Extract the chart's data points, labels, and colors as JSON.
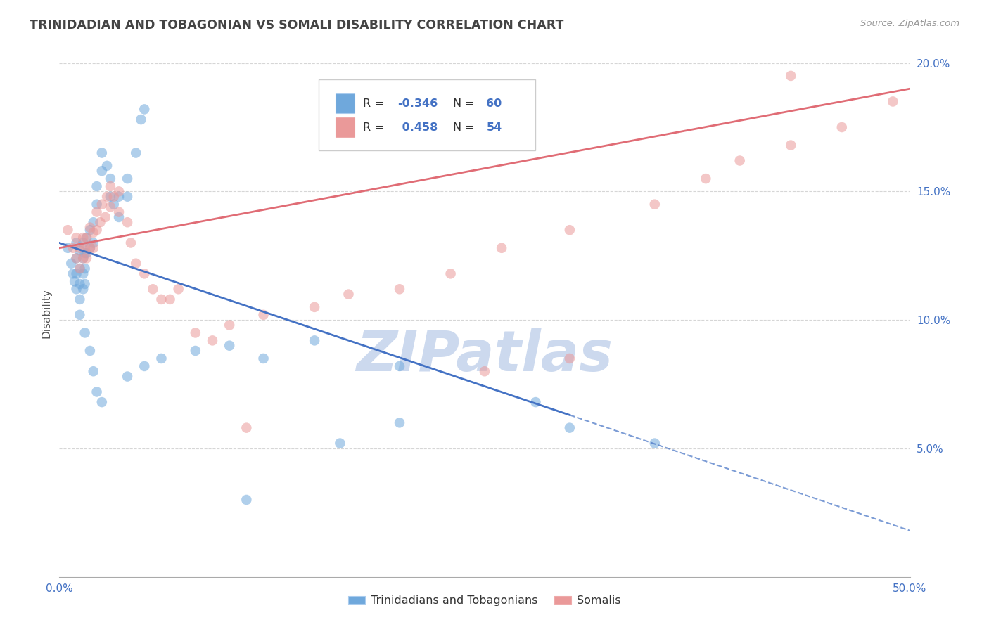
{
  "title": "TRINIDADIAN AND TOBAGONIAN VS SOMALI DISABILITY CORRELATION CHART",
  "source_text": "Source: ZipAtlas.com",
  "ylabel": "Disability",
  "watermark": "ZIPatlas",
  "xmin": 0.0,
  "xmax": 0.5,
  "ymin": 0.0,
  "ymax": 0.205,
  "yticks": [
    0.05,
    0.1,
    0.15,
    0.2
  ],
  "ytick_labels": [
    "5.0%",
    "10.0%",
    "15.0%",
    "20.0%"
  ],
  "color_blue": "#6fa8dc",
  "color_pink": "#ea9999",
  "color_blue_line": "#4472c4",
  "color_pink_line": "#e06c75",
  "blue_scatter": [
    [
      0.005,
      0.128
    ],
    [
      0.007,
      0.122
    ],
    [
      0.008,
      0.118
    ],
    [
      0.009,
      0.115
    ],
    [
      0.01,
      0.13
    ],
    [
      0.01,
      0.124
    ],
    [
      0.01,
      0.118
    ],
    [
      0.01,
      0.112
    ],
    [
      0.012,
      0.127
    ],
    [
      0.012,
      0.12
    ],
    [
      0.012,
      0.114
    ],
    [
      0.012,
      0.108
    ],
    [
      0.012,
      0.102
    ],
    [
      0.014,
      0.13
    ],
    [
      0.014,
      0.124
    ],
    [
      0.014,
      0.118
    ],
    [
      0.014,
      0.112
    ],
    [
      0.015,
      0.126
    ],
    [
      0.015,
      0.12
    ],
    [
      0.015,
      0.114
    ],
    [
      0.016,
      0.132
    ],
    [
      0.016,
      0.126
    ],
    [
      0.018,
      0.135
    ],
    [
      0.018,
      0.128
    ],
    [
      0.02,
      0.138
    ],
    [
      0.02,
      0.13
    ],
    [
      0.022,
      0.152
    ],
    [
      0.022,
      0.145
    ],
    [
      0.025,
      0.165
    ],
    [
      0.025,
      0.158
    ],
    [
      0.028,
      0.16
    ],
    [
      0.03,
      0.155
    ],
    [
      0.03,
      0.148
    ],
    [
      0.032,
      0.145
    ],
    [
      0.035,
      0.148
    ],
    [
      0.035,
      0.14
    ],
    [
      0.04,
      0.155
    ],
    [
      0.04,
      0.148
    ],
    [
      0.045,
      0.165
    ],
    [
      0.048,
      0.178
    ],
    [
      0.05,
      0.182
    ],
    [
      0.015,
      0.095
    ],
    [
      0.018,
      0.088
    ],
    [
      0.02,
      0.08
    ],
    [
      0.022,
      0.072
    ],
    [
      0.025,
      0.068
    ],
    [
      0.04,
      0.078
    ],
    [
      0.05,
      0.082
    ],
    [
      0.06,
      0.085
    ],
    [
      0.08,
      0.088
    ],
    [
      0.1,
      0.09
    ],
    [
      0.12,
      0.085
    ],
    [
      0.15,
      0.092
    ],
    [
      0.2,
      0.082
    ],
    [
      0.3,
      0.058
    ],
    [
      0.35,
      0.052
    ],
    [
      0.28,
      0.068
    ],
    [
      0.2,
      0.06
    ],
    [
      0.165,
      0.052
    ],
    [
      0.11,
      0.03
    ]
  ],
  "pink_scatter": [
    [
      0.005,
      0.135
    ],
    [
      0.008,
      0.128
    ],
    [
      0.01,
      0.132
    ],
    [
      0.01,
      0.124
    ],
    [
      0.012,
      0.128
    ],
    [
      0.012,
      0.12
    ],
    [
      0.014,
      0.132
    ],
    [
      0.014,
      0.124
    ],
    [
      0.015,
      0.128
    ],
    [
      0.016,
      0.132
    ],
    [
      0.016,
      0.124
    ],
    [
      0.018,
      0.136
    ],
    [
      0.018,
      0.128
    ],
    [
      0.02,
      0.134
    ],
    [
      0.02,
      0.128
    ],
    [
      0.022,
      0.142
    ],
    [
      0.022,
      0.135
    ],
    [
      0.024,
      0.138
    ],
    [
      0.025,
      0.145
    ],
    [
      0.027,
      0.14
    ],
    [
      0.028,
      0.148
    ],
    [
      0.03,
      0.152
    ],
    [
      0.03,
      0.144
    ],
    [
      0.032,
      0.148
    ],
    [
      0.035,
      0.15
    ],
    [
      0.035,
      0.142
    ],
    [
      0.04,
      0.138
    ],
    [
      0.042,
      0.13
    ],
    [
      0.045,
      0.122
    ],
    [
      0.05,
      0.118
    ],
    [
      0.055,
      0.112
    ],
    [
      0.06,
      0.108
    ],
    [
      0.065,
      0.108
    ],
    [
      0.07,
      0.112
    ],
    [
      0.08,
      0.095
    ],
    [
      0.09,
      0.092
    ],
    [
      0.1,
      0.098
    ],
    [
      0.12,
      0.102
    ],
    [
      0.15,
      0.105
    ],
    [
      0.17,
      0.11
    ],
    [
      0.2,
      0.112
    ],
    [
      0.23,
      0.118
    ],
    [
      0.26,
      0.128
    ],
    [
      0.3,
      0.135
    ],
    [
      0.35,
      0.145
    ],
    [
      0.38,
      0.155
    ],
    [
      0.4,
      0.162
    ],
    [
      0.43,
      0.168
    ],
    [
      0.46,
      0.175
    ],
    [
      0.49,
      0.185
    ],
    [
      0.3,
      0.085
    ],
    [
      0.25,
      0.08
    ],
    [
      0.43,
      0.195
    ],
    [
      0.11,
      0.058
    ]
  ],
  "blue_trendline_solid": [
    [
      0.0,
      0.13
    ],
    [
      0.3,
      0.063
    ]
  ],
  "blue_trendline_dash": [
    [
      0.3,
      0.063
    ],
    [
      0.5,
      0.018
    ]
  ],
  "pink_trendline": [
    [
      0.0,
      0.128
    ],
    [
      0.5,
      0.19
    ]
  ],
  "background_color": "#ffffff",
  "grid_color": "#cccccc",
  "title_color": "#444444",
  "axis_label_color": "#4472c4",
  "watermark_color": "#ccd9ee"
}
